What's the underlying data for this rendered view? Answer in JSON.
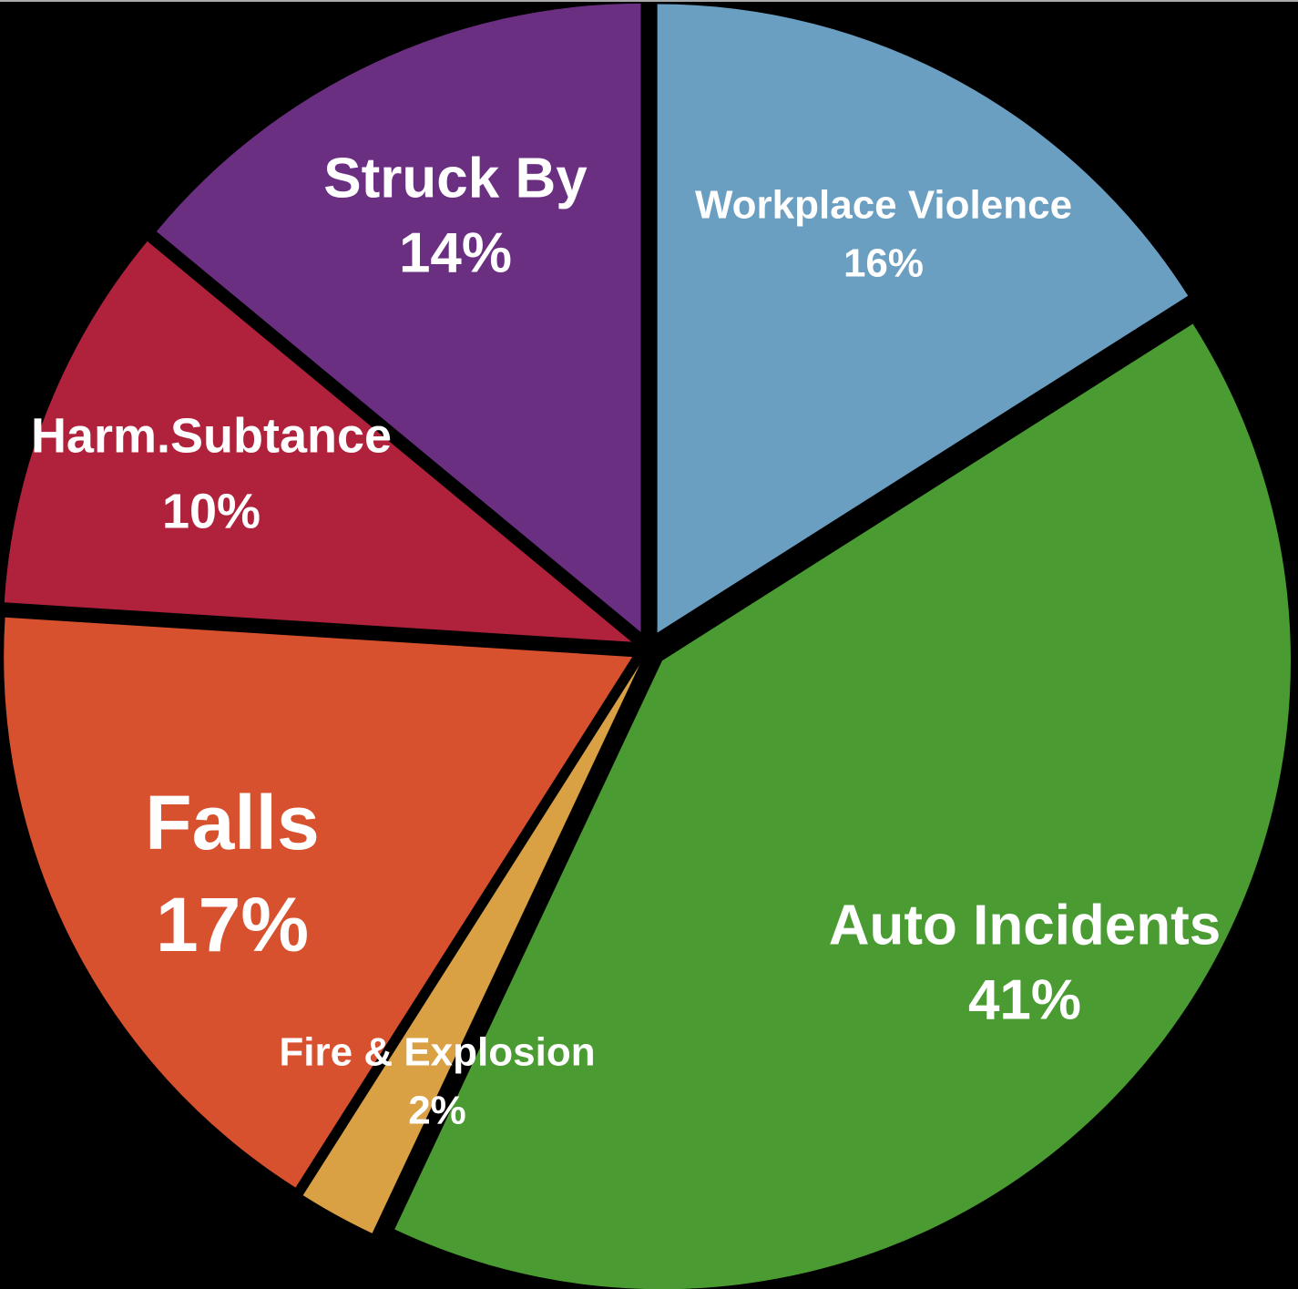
{
  "chart_data": {
    "type": "pie",
    "categories": [
      "Workplace Violence",
      "Auto Incidents",
      "Fire & Explosion",
      "Falls",
      "Harm.Subtance",
      "Struck By"
    ],
    "values": [
      16,
      41,
      2,
      17,
      10,
      14
    ],
    "value_labels": [
      "16%",
      "41%",
      "2%",
      "17%",
      "10%",
      "14%"
    ],
    "colors": [
      "#6b9fc2",
      "#4a9c32",
      "#d9a044",
      "#d8512f",
      "#b0223c",
      "#6b2f82"
    ]
  }
}
